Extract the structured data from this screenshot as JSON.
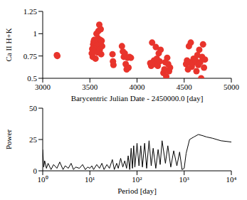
{
  "chart_data": [
    {
      "type": "scatter",
      "x_label": "Barycentric Julian Date - 2450000.0 [day]",
      "y_label": "Ca II H+K",
      "color": "#e8342c",
      "marker": "circle",
      "xlim": [
        3000,
        5000
      ],
      "xticks": [
        3000,
        3500,
        4000,
        4500,
        5000
      ],
      "ylim": [
        0.5,
        1.25
      ],
      "yticks": [
        0.5,
        0.75,
        1,
        1.25
      ],
      "x": [
        3150,
        3155,
        3520,
        3525,
        3530,
        3535,
        3540,
        3545,
        3550,
        3555,
        3560,
        3565,
        3570,
        3575,
        3580,
        3585,
        3590,
        3595,
        3600,
        3605,
        3610,
        3615,
        3620,
        3625,
        3630,
        3740,
        3745,
        3750,
        3840,
        3850,
        3860,
        3870,
        3880,
        3890,
        3900,
        3910,
        3920,
        3935,
        4140,
        4150,
        4160,
        4170,
        4180,
        4190,
        4200,
        4210,
        4220,
        4230,
        4240,
        4250,
        4280,
        4290,
        4300,
        4310,
        4320,
        4330,
        4340,
        4350,
        4520,
        4530,
        4540,
        4550,
        4560,
        4570,
        4580,
        4590,
        4600,
        4620,
        4630,
        4640,
        4650,
        4660,
        4670,
        4680,
        4690,
        4700,
        4710,
        4720
      ],
      "values": [
        0.76,
        0.75,
        0.78,
        0.83,
        0.74,
        0.88,
        0.91,
        0.93,
        0.8,
        0.85,
        0.72,
        0.9,
        1.0,
        0.86,
        0.79,
        0.95,
        1.03,
        0.88,
        1.1,
        0.82,
        0.93,
        1.05,
        0.77,
        0.92,
        0.86,
        0.77,
        0.69,
        0.65,
        0.86,
        0.8,
        0.74,
        0.78,
        0.66,
        0.6,
        0.73,
        0.62,
        0.74,
        0.73,
        0.67,
        0.64,
        0.9,
        0.68,
        0.7,
        0.66,
        0.85,
        0.72,
        0.64,
        0.78,
        0.69,
        0.82,
        0.56,
        0.6,
        0.68,
        0.52,
        0.73,
        0.66,
        0.58,
        0.62,
        0.66,
        0.7,
        0.6,
        0.86,
        0.68,
        0.9,
        0.63,
        0.67,
        0.72,
        0.7,
        0.58,
        0.76,
        0.65,
        0.82,
        0.68,
        0.5,
        0.74,
        0.88,
        0.62,
        0.71
      ]
    },
    {
      "type": "line",
      "x_label": "Period [day]",
      "y_label": "Power",
      "color": "#000000",
      "log": "x",
      "xlim": [
        1,
        10000
      ],
      "xticks": [
        {
          "value": 1,
          "label": "10⁰"
        },
        {
          "value": 10,
          "label": "10¹"
        },
        {
          "value": 100,
          "label": "10²"
        },
        {
          "value": 1000,
          "label": "10³"
        },
        {
          "value": 10000,
          "label": "10⁴"
        }
      ],
      "ylim": [
        0,
        50
      ],
      "yticks": [
        0,
        25,
        50
      ],
      "x": [
        1,
        1.05,
        1.1,
        1.2,
        1.3,
        1.5,
        1.7,
        2,
        2.3,
        2.7,
        3,
        3.5,
        4,
        4.5,
        5,
        6,
        7,
        8,
        9,
        10,
        11,
        12,
        14,
        16,
        18,
        20,
        23,
        26,
        30,
        33,
        37,
        40,
        45,
        50,
        55,
        60,
        65,
        70,
        75,
        80,
        85,
        90,
        100,
        110,
        120,
        130,
        145,
        160,
        180,
        200,
        220,
        250,
        280,
        310,
        340,
        400,
        450,
        520,
        600,
        700,
        800,
        900,
        1000,
        1100,
        1300,
        1600,
        2000,
        2500,
        3000,
        4000,
        6000,
        10000
      ],
      "values": [
        17,
        3,
        8,
        2,
        6,
        1,
        5,
        2,
        7,
        1,
        4,
        2,
        6,
        1,
        3,
        2,
        5,
        1,
        3,
        2,
        4,
        1,
        5,
        2,
        6,
        1,
        5,
        2,
        9,
        1,
        6,
        2,
        10,
        3,
        8,
        2,
        12,
        1,
        18,
        2,
        20,
        3,
        22,
        4,
        20,
        3,
        22,
        2,
        24,
        4,
        18,
        2,
        17,
        5,
        24,
        6,
        20,
        3,
        16,
        4,
        15,
        1,
        2,
        14,
        25,
        27,
        29,
        28,
        27,
        26,
        24,
        23
      ]
    }
  ]
}
